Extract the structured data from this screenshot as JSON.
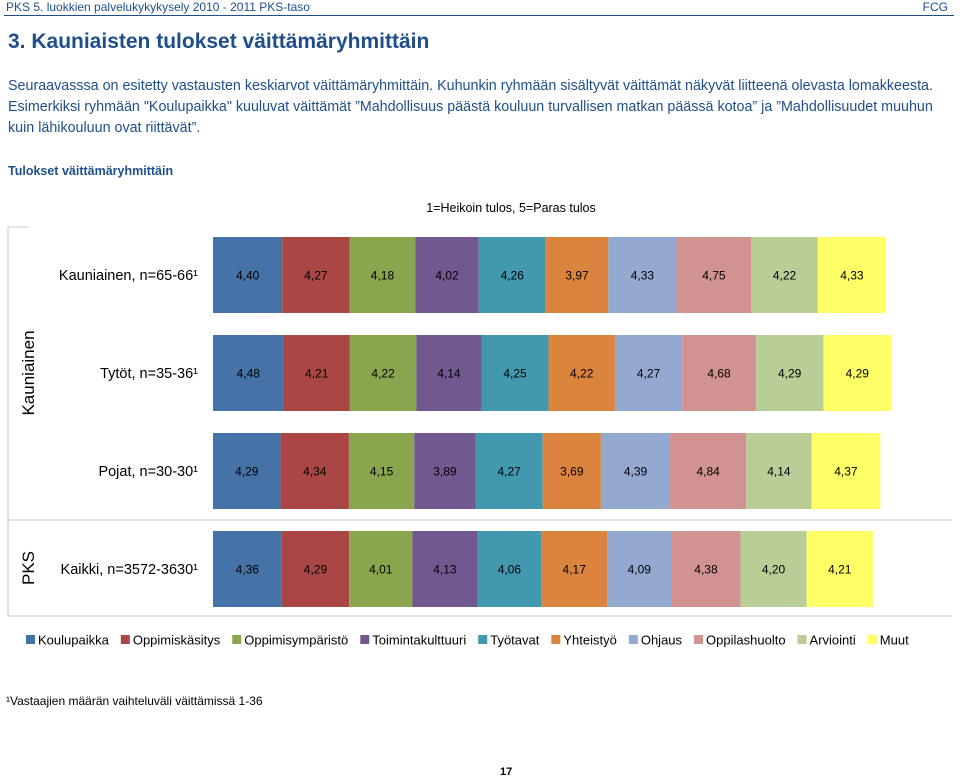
{
  "header": {
    "left": "PKS 5. luokkien palvelukykykysely 2010 - 2011 PKS-taso",
    "right": "FCG"
  },
  "page_title": "3. Kauniaisten tulokset väittämäryhmittäin",
  "intro_text": "Seuraavasssa on  esitetty vastausten keskiarvot väittämäryhmittäin. Kuhunkin ryhmään sisältyvät väittämät näkyvät liitteenä olevasta lomakkeesta. Esimerkiksi ryhmään \"Koulupaikka\" kuuluvat  väittämät ”Mahdollisuus päästä kouluun turvallisen matkan päässä kotoa” ja ”Mahdollisuudet  muuhun kuin  lähikouluun ovat riittävät”.",
  "footnote": "¹Vastaajien määrän vaihteluväli väittämissä 1-36",
  "page_number": "17",
  "chart_data": {
    "type": "bar",
    "orientation": "horizontal",
    "stacked": true,
    "title": "Tulokset väittämäryhmittäin",
    "subtitle": "1=Heikoin tulos, 5=Paras tulos",
    "groups": [
      {
        "label": "Kauniainen",
        "rows": [
          "Kauniainen, n=65-66¹",
          "Tytöt, n=35-36¹",
          "Pojat, n=30-30¹"
        ]
      },
      {
        "label": "PKS",
        "rows": [
          "Kaikki, n=3572-3630¹"
        ]
      }
    ],
    "categories": [
      "Kauniainen, n=65-66¹",
      "Tytöt, n=35-36¹",
      "Pojat, n=30-30¹",
      "Kaikki, n=3572-3630¹"
    ],
    "series": [
      {
        "name": "Koulupaikka",
        "color": "#4572a7",
        "values": [
          4.4,
          4.48,
          4.29,
          4.36
        ],
        "labels": [
          "4,40",
          "4,48",
          "4,29",
          "4,36"
        ]
      },
      {
        "name": "Oppimiskäsitys",
        "color": "#aa4643",
        "values": [
          4.27,
          4.21,
          4.34,
          4.29
        ],
        "labels": [
          "4,27",
          "4,21",
          "4,34",
          "4,29"
        ]
      },
      {
        "name": "Oppimisympäristö",
        "color": "#89a54e",
        "values": [
          4.18,
          4.22,
          4.15,
          4.01
        ],
        "labels": [
          "4,18",
          "4,22",
          "4,15",
          "4,01"
        ]
      },
      {
        "name": "Toimintakulttuuri",
        "color": "#71588f",
        "values": [
          4.02,
          4.14,
          3.89,
          4.13
        ],
        "labels": [
          "4,02",
          "4,14",
          "3,89",
          "4,13"
        ]
      },
      {
        "name": "Työtavat",
        "color": "#4198af",
        "values": [
          4.26,
          4.25,
          4.27,
          4.06
        ],
        "labels": [
          "4,26",
          "4,25",
          "4,27",
          "4,06"
        ]
      },
      {
        "name": "Yhteistyö",
        "color": "#db843d",
        "values": [
          3.97,
          4.22,
          3.69,
          4.17
        ],
        "labels": [
          "3,97",
          "4,22",
          "3,69",
          "4,17"
        ]
      },
      {
        "name": "Ohjaus",
        "color": "#93a9cf",
        "values": [
          4.33,
          4.27,
          4.39,
          4.09
        ],
        "labels": [
          "4,33",
          "4,27",
          "4,39",
          "4,09"
        ]
      },
      {
        "name": "Oppilashuolto",
        "color": "#d19392",
        "values": [
          4.75,
          4.68,
          4.84,
          4.38
        ],
        "labels": [
          "4,75",
          "4,68",
          "4,84",
          "4,38"
        ]
      },
      {
        "name": "Arviointi",
        "color": "#b9cd96",
        "values": [
          4.22,
          4.29,
          4.14,
          4.2
        ],
        "labels": [
          "4,22",
          "4,29",
          "4,14",
          "4,20"
        ]
      },
      {
        "name": "Muut",
        "color": "#ffff66",
        "values": [
          4.33,
          4.29,
          4.37,
          4.21
        ],
        "labels": [
          "4,33",
          "4,29",
          "4,37",
          "4,21"
        ]
      }
    ],
    "legend_position": "bottom",
    "grid": false
  }
}
